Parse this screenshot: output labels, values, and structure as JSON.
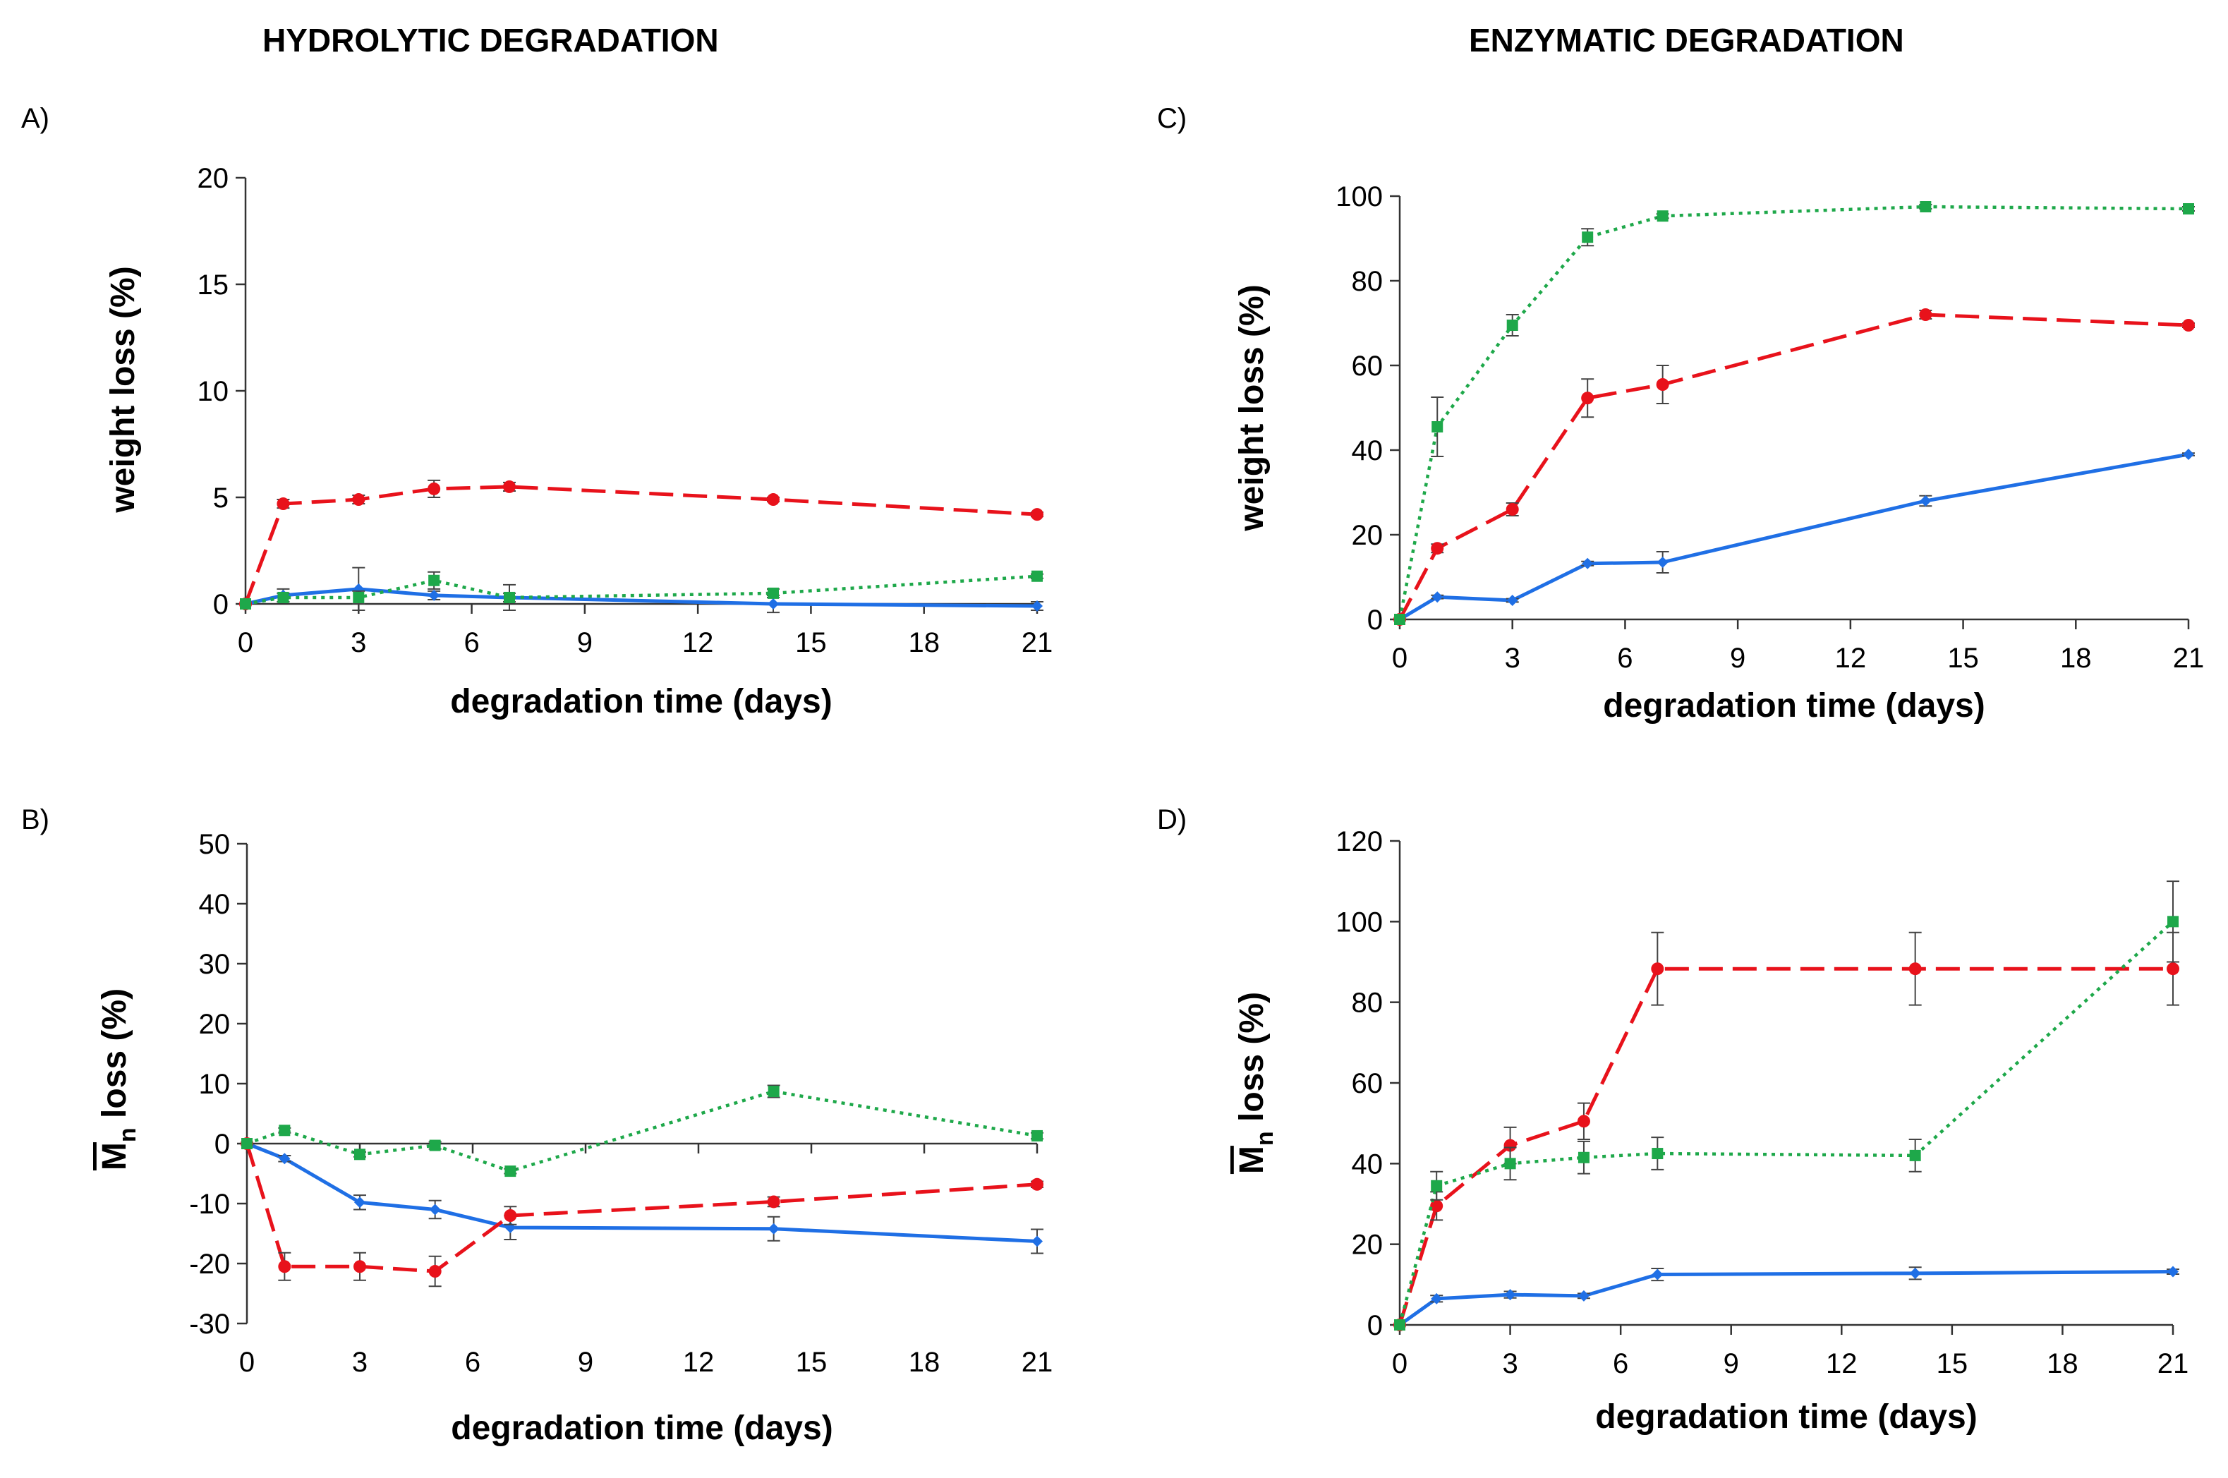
{
  "headers": {
    "hydrolytic": "HYDROLYTIC DEGRADATION",
    "enzymatic": "ENZYMATIC DEGRADATION"
  },
  "colors": {
    "blue": "#1f6fe5",
    "red": "#e8121b",
    "green": "#1ea84a",
    "err": "#444444"
  },
  "chart_data": [
    {
      "panel": "A)",
      "type": "line",
      "xlabel": "degradation time (days)",
      "ylabel": "weight loss (%)",
      "xlim": [
        0,
        21
      ],
      "xticks": [
        0,
        3,
        6,
        9,
        12,
        15,
        18,
        21
      ],
      "ylim": [
        0,
        20
      ],
      "yticks": [
        0,
        5,
        10,
        15,
        20
      ],
      "series": [
        {
          "name": "blue",
          "color": "#1f6fe5",
          "dash": "solid",
          "x": [
            0,
            1,
            3,
            5,
            7,
            14,
            21
          ],
          "y": [
            0,
            0.4,
            0.7,
            0.4,
            0.3,
            0,
            -0.1
          ],
          "err": [
            0,
            0.3,
            1.0,
            0.2,
            0.2,
            0.4,
            0.2
          ]
        },
        {
          "name": "red",
          "color": "#e8121b",
          "dash": "dash",
          "x": [
            0,
            1,
            3,
            5,
            7,
            14,
            21
          ],
          "y": [
            0,
            4.7,
            4.9,
            5.4,
            5.5,
            4.9,
            4.2
          ],
          "err": [
            0,
            0.2,
            0.2,
            0.4,
            0.2,
            0.1,
            0.1
          ]
        },
        {
          "name": "green",
          "color": "#1ea84a",
          "dash": "dot",
          "x": [
            0,
            1,
            3,
            5,
            7,
            14,
            21
          ],
          "y": [
            0,
            0.3,
            0.3,
            1.1,
            0.3,
            0.5,
            1.3
          ],
          "err": [
            0,
            0.2,
            0.3,
            0.4,
            0.6,
            0.2,
            0.1
          ]
        }
      ]
    },
    {
      "panel": "B)",
      "type": "line",
      "xlabel": "degradation time (days)",
      "ylabel_main": "M",
      "ylabel_sub": "n",
      "ylabel_rest": " loss (%)",
      "xlim": [
        0,
        21
      ],
      "xticks": [
        0,
        3,
        6,
        9,
        12,
        15,
        18,
        21
      ],
      "ylim": [
        -30,
        50
      ],
      "yticks": [
        -30,
        -20,
        -10,
        0,
        10,
        20,
        30,
        40,
        50
      ],
      "series": [
        {
          "name": "blue",
          "color": "#1f6fe5",
          "dash": "solid",
          "x": [
            0,
            1,
            3,
            5,
            7,
            14,
            21
          ],
          "y": [
            0,
            -2.5,
            -9.8,
            -11,
            -14,
            -14.2,
            -16.3
          ],
          "err": [
            0,
            0.5,
            1.2,
            1.5,
            2.0,
            2.0,
            2.0
          ]
        },
        {
          "name": "red",
          "color": "#e8121b",
          "dash": "dash",
          "x": [
            0,
            1,
            3,
            5,
            7,
            14,
            21
          ],
          "y": [
            0,
            -20.5,
            -20.5,
            -21.3,
            -12,
            -9.7,
            -6.8
          ],
          "err": [
            0,
            2.3,
            2.3,
            2.5,
            1.5,
            0.8,
            0.5
          ]
        },
        {
          "name": "green",
          "color": "#1ea84a",
          "dash": "dot",
          "x": [
            0,
            1,
            3,
            5,
            7,
            14,
            21
          ],
          "y": [
            0,
            2.2,
            -1.8,
            -0.3,
            -4.6,
            8.7,
            1.3
          ],
          "err": [
            0,
            0.4,
            0.4,
            0.6,
            0.4,
            1.0,
            0.5
          ]
        }
      ]
    },
    {
      "panel": "C)",
      "type": "line",
      "xlabel": "degradation time (days)",
      "ylabel": "weight loss (%)",
      "xlim": [
        0,
        21
      ],
      "xticks": [
        0,
        3,
        6,
        9,
        12,
        15,
        18,
        21
      ],
      "ylim": [
        0,
        100
      ],
      "yticks": [
        0,
        20,
        40,
        60,
        80,
        100
      ],
      "series": [
        {
          "name": "blue",
          "color": "#1f6fe5",
          "dash": "solid",
          "x": [
            0,
            1,
            3,
            5,
            7,
            14,
            21
          ],
          "y": [
            0,
            5.3,
            4.5,
            13.2,
            13.5,
            28,
            39
          ],
          "err": [
            0,
            0.4,
            0.4,
            0.5,
            2.5,
            1.2,
            0.3
          ]
        },
        {
          "name": "red",
          "color": "#e8121b",
          "dash": "dash",
          "x": [
            0,
            1,
            3,
            5,
            7,
            14,
            21
          ],
          "y": [
            0,
            16.8,
            26,
            52.3,
            55.5,
            72,
            69.5
          ],
          "err": [
            0,
            1.0,
            1.5,
            4.5,
            4.5,
            1.0,
            0.5
          ]
        },
        {
          "name": "green",
          "color": "#1ea84a",
          "dash": "dot",
          "x": [
            0,
            1,
            3,
            5,
            7,
            14,
            21
          ],
          "y": [
            0,
            45.5,
            69.5,
            90.3,
            95.3,
            97.5,
            97
          ],
          "err": [
            0,
            7.0,
            2.5,
            2.0,
            0.5,
            0.5,
            0.5
          ]
        }
      ]
    },
    {
      "panel": "D)",
      "type": "line",
      "xlabel": "degradation time (days)",
      "ylabel_main": "M",
      "ylabel_sub": "n",
      "ylabel_rest": " loss (%)",
      "xlim": [
        0,
        21
      ],
      "xticks": [
        0,
        3,
        6,
        9,
        12,
        15,
        18,
        21
      ],
      "ylim": [
        0,
        120
      ],
      "yticks": [
        0,
        20,
        40,
        60,
        80,
        100,
        120
      ],
      "series": [
        {
          "name": "blue",
          "color": "#1f6fe5",
          "dash": "solid",
          "x": [
            0,
            1,
            3,
            5,
            7,
            14,
            21
          ],
          "y": [
            0,
            6.5,
            7.5,
            7.2,
            12.5,
            12.8,
            13.2
          ],
          "err": [
            0,
            0.8,
            0.8,
            0.6,
            1.5,
            1.5,
            0.6
          ]
        },
        {
          "name": "red",
          "color": "#e8121b",
          "dash": "dash",
          "x": [
            0,
            1,
            3,
            5,
            7,
            14,
            21
          ],
          "y": [
            0,
            29.5,
            44.5,
            50.5,
            88.3,
            88.3,
            88.3
          ],
          "err": [
            0,
            3.5,
            4.5,
            4.5,
            9.0,
            9.0,
            9.0
          ]
        },
        {
          "name": "green",
          "color": "#1ea84a",
          "dash": "dot",
          "x": [
            0,
            1,
            3,
            5,
            7,
            14,
            21
          ],
          "y": [
            0,
            34.5,
            40,
            41.5,
            42.5,
            42,
            100
          ],
          "err": [
            0,
            3.5,
            4.0,
            4.0,
            4.0,
            4.0,
            10.0
          ]
        }
      ]
    }
  ]
}
